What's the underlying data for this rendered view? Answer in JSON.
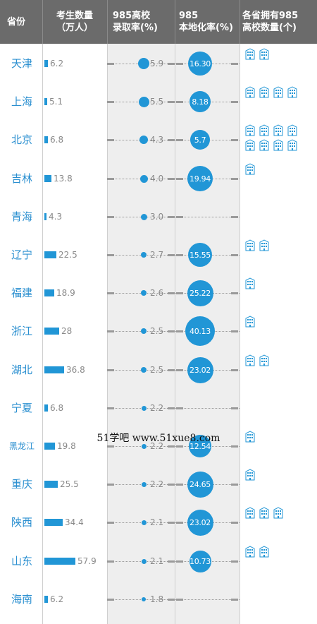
{
  "header": {
    "col1": "省份",
    "col2_line1": "考生数量",
    "col2_line2": "（万人）",
    "col3_line1": "985高校",
    "col3_line2": "录取率(%)",
    "col4_line1": "985",
    "col4_line2": "本地化率(%)",
    "col5_line1": "各省拥有985",
    "col5_line2": "高校数量(个)"
  },
  "watermark": "51学吧 www.51xue8.com",
  "colors": {
    "accent": "#2196d6",
    "header_bg": "#6b6b6b",
    "province_text": "#2a8fd0"
  },
  "chart_data": {
    "type": "table",
    "rows": [
      {
        "province": "天津",
        "examinees": 6.2,
        "examinees_label": "6.2",
        "admission_rate": 5.9,
        "admission_label": "5.9",
        "localization": 16.3,
        "localization_label": "16.30",
        "universities": 2
      },
      {
        "province": "上海",
        "examinees": 5.1,
        "examinees_label": "5.1",
        "admission_rate": 5.5,
        "admission_label": "5.5",
        "localization": 8.18,
        "localization_label": "8.18",
        "universities": 4
      },
      {
        "province": "北京",
        "examinees": 6.8,
        "examinees_label": "6.8",
        "admission_rate": 4.3,
        "admission_label": "4.3",
        "localization": 5.7,
        "localization_label": "5.7",
        "universities": 8
      },
      {
        "province": "吉林",
        "examinees": 13.8,
        "examinees_label": "13.8",
        "admission_rate": 4.0,
        "admission_label": "4.0",
        "localization": 19.94,
        "localization_label": "19.94",
        "universities": 1
      },
      {
        "province": "青海",
        "examinees": 4.3,
        "examinees_label": "4.3",
        "admission_rate": 3.0,
        "admission_label": "3.0",
        "localization": null,
        "localization_label": "",
        "universities": 0
      },
      {
        "province": "辽宁",
        "examinees": 22.5,
        "examinees_label": "22.5",
        "admission_rate": 2.7,
        "admission_label": "2.7",
        "localization": 15.55,
        "localization_label": "15.55",
        "universities": 2
      },
      {
        "province": "福建",
        "examinees": 18.9,
        "examinees_label": "18.9",
        "admission_rate": 2.6,
        "admission_label": "2.6",
        "localization": 25.22,
        "localization_label": "25.22",
        "universities": 1
      },
      {
        "province": "浙江",
        "examinees": 28,
        "examinees_label": "28",
        "admission_rate": 2.5,
        "admission_label": "2.5",
        "localization": 40.13,
        "localization_label": "40.13",
        "universities": 1
      },
      {
        "province": "湖北",
        "examinees": 36.8,
        "examinees_label": "36.8",
        "admission_rate": 2.5,
        "admission_label": "2.5",
        "localization": 23.02,
        "localization_label": "23.02",
        "universities": 2
      },
      {
        "province": "宁夏",
        "examinees": 6.8,
        "examinees_label": "6.8",
        "admission_rate": 2.2,
        "admission_label": "2.2",
        "localization": null,
        "localization_label": "",
        "universities": 0
      },
      {
        "province": "黑龙江",
        "examinees": 19.8,
        "examinees_label": "19.8",
        "admission_rate": 2.2,
        "admission_label": "2.2",
        "localization": 12.54,
        "localization_label": "12.54",
        "universities": 1
      },
      {
        "province": "重庆",
        "examinees": 25.5,
        "examinees_label": "25.5",
        "admission_rate": 2.2,
        "admission_label": "2.2",
        "localization": 24.65,
        "localization_label": "24.65",
        "universities": 1
      },
      {
        "province": "陕西",
        "examinees": 34.4,
        "examinees_label": "34.4",
        "admission_rate": 2.1,
        "admission_label": "2.1",
        "localization": 23.02,
        "localization_label": "23.02",
        "universities": 3
      },
      {
        "province": "山东",
        "examinees": 57.9,
        "examinees_label": "57.9",
        "admission_rate": 2.1,
        "admission_label": "2.1",
        "localization": 10.73,
        "localization_label": "10.73",
        "universities": 2
      },
      {
        "province": "海南",
        "examinees": 6.2,
        "examinees_label": "6.2",
        "admission_rate": 1.8,
        "admission_label": "1.8",
        "localization": null,
        "localization_label": "",
        "universities": 0
      }
    ]
  }
}
